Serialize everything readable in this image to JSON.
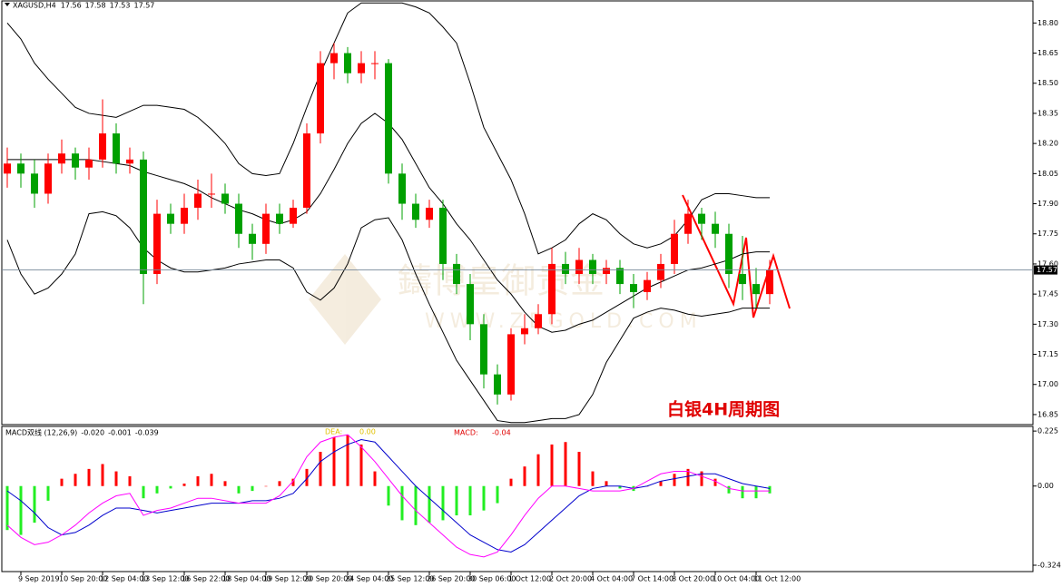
{
  "chart_data": [
    {
      "type": "candlestick",
      "title": "XAGUSD,H4",
      "info": [
        17.56,
        17.58,
        17.53,
        17.57
      ],
      "categories": [
        null,
        "9 Sep 2019",
        null,
        null,
        "10 Sep 20:00",
        null,
        null,
        "12 Sep 04:00",
        null,
        null,
        "13 Sep 12:00",
        null,
        null,
        "16 Sep 22:00",
        null,
        null,
        "18 Sep 04:00",
        null,
        null,
        "19 Sep 12:00",
        null,
        null,
        "20 Sep 20:00",
        null,
        null,
        "24 Sep 04:00",
        null,
        null,
        "25 Sep 12:00",
        null,
        null,
        "26 Sep 20:00",
        null,
        null,
        "30 Sep 06:00",
        null,
        null,
        "1 Oct 12:00",
        null,
        null,
        "2 Oct 20:00",
        null,
        null,
        "4 Oct 04:00",
        null,
        null,
        "7 Oct 14:00",
        null,
        null,
        "8 Oct 20:00",
        null,
        null,
        "10 Oct 04:00",
        null,
        null,
        "11 Oct 12:00",
        null
      ],
      "open": [
        18.05,
        18.1,
        18.05,
        17.95,
        18.1,
        18.15,
        18.08,
        18.12,
        18.25,
        18.1,
        18.12,
        17.55,
        17.85,
        17.8,
        17.88,
        17.95,
        17.95,
        17.9,
        17.75,
        17.7,
        17.85,
        17.8,
        17.88,
        18.25,
        18.6,
        18.65,
        18.55,
        18.6,
        18.6,
        18.05,
        17.9,
        17.82,
        17.88,
        17.6,
        17.5,
        17.3,
        17.05,
        16.95,
        17.25,
        17.28,
        17.35,
        17.6,
        17.55,
        17.62,
        17.55,
        17.58,
        17.5,
        17.46,
        17.52,
        17.6,
        17.75,
        17.85,
        17.8,
        17.75,
        17.55,
        17.5,
        17.45
      ],
      "high": [
        18.18,
        18.15,
        18.12,
        18.15,
        18.22,
        18.18,
        18.18,
        18.42,
        18.3,
        18.18,
        18.16,
        17.92,
        17.9,
        17.95,
        18.02,
        18.05,
        18.0,
        17.95,
        17.8,
        17.9,
        17.9,
        17.92,
        18.3,
        18.66,
        18.7,
        18.68,
        18.66,
        18.66,
        18.62,
        18.1,
        17.95,
        17.92,
        17.92,
        17.65,
        17.55,
        17.35,
        17.1,
        17.28,
        17.35,
        17.4,
        17.68,
        17.66,
        17.68,
        17.65,
        17.62,
        17.62,
        17.55,
        17.56,
        17.65,
        17.82,
        17.92,
        17.88,
        17.86,
        17.8,
        17.74,
        17.58,
        17.62
      ],
      "low": [
        17.98,
        17.98,
        17.88,
        17.9,
        18.05,
        18.02,
        18.02,
        18.08,
        18.05,
        18.05,
        17.4,
        17.5,
        17.75,
        17.75,
        17.82,
        17.88,
        17.85,
        17.68,
        17.62,
        17.65,
        17.75,
        17.78,
        17.85,
        18.2,
        18.52,
        18.5,
        18.5,
        18.52,
        18.0,
        17.82,
        17.78,
        17.78,
        17.52,
        17.45,
        17.22,
        16.98,
        16.9,
        16.92,
        17.2,
        17.25,
        17.3,
        17.5,
        17.5,
        17.5,
        17.5,
        17.45,
        17.38,
        17.42,
        17.48,
        17.55,
        17.7,
        17.72,
        17.68,
        17.48,
        17.42,
        17.38,
        17.4
      ],
      "close": [
        18.1,
        18.05,
        17.95,
        18.1,
        18.15,
        18.08,
        18.12,
        18.25,
        18.1,
        18.12,
        17.55,
        17.85,
        17.8,
        17.88,
        17.95,
        17.95,
        17.9,
        17.75,
        17.7,
        17.85,
        17.8,
        17.88,
        18.25,
        18.6,
        18.65,
        18.55,
        18.6,
        18.6,
        18.05,
        17.9,
        17.82,
        17.88,
        17.6,
        17.5,
        17.3,
        17.05,
        16.95,
        17.25,
        17.28,
        17.35,
        17.6,
        17.55,
        17.62,
        17.55,
        17.58,
        17.5,
        17.46,
        17.52,
        17.6,
        17.75,
        17.85,
        17.8,
        17.75,
        17.55,
        17.5,
        17.45,
        17.57
      ],
      "color_up": "#ff0000",
      "color_down": "#00a000",
      "bands": [
        {
          "color": "#000000",
          "values": [
            18.8,
            18.72,
            18.6,
            18.52,
            18.45,
            18.38,
            18.35,
            18.34,
            18.33,
            18.36,
            18.39,
            18.39,
            18.38,
            18.37,
            18.33,
            18.27,
            18.2,
            18.1,
            18.05,
            18.04,
            18.05,
            18.2,
            18.38,
            18.55,
            18.7,
            18.85,
            18.9,
            18.9,
            18.9,
            18.9,
            18.88,
            18.85,
            18.78,
            18.7,
            18.5,
            18.28,
            18.15,
            18.02,
            17.85,
            17.65,
            17.68,
            17.72,
            17.8,
            17.85,
            17.82,
            17.75,
            17.7,
            17.68,
            17.7,
            17.74,
            17.82,
            17.92,
            17.95,
            17.95,
            17.94,
            17.93,
            17.93
          ]
        },
        {
          "color": "#000000",
          "values": [
            18.12,
            18.12,
            18.12,
            18.12,
            18.12,
            18.12,
            18.12,
            18.11,
            18.1,
            18.09,
            18.06,
            18.04,
            18.02,
            18.0,
            17.97,
            17.93,
            17.9,
            17.87,
            17.85,
            17.82,
            17.8,
            17.82,
            17.86,
            17.95,
            18.07,
            18.2,
            18.3,
            18.35,
            18.3,
            18.22,
            18.1,
            17.98,
            17.9,
            17.8,
            17.72,
            17.62,
            17.52,
            17.45,
            17.36,
            17.29,
            17.26,
            17.27,
            17.3,
            17.32,
            17.36,
            17.4,
            17.44,
            17.48,
            17.51,
            17.54,
            17.57,
            17.58,
            17.6,
            17.62,
            17.65,
            17.66,
            17.66
          ]
        },
        {
          "color": "#000000",
          "values": [
            17.72,
            17.55,
            17.45,
            17.48,
            17.55,
            17.65,
            17.85,
            17.86,
            17.84,
            17.78,
            17.68,
            17.62,
            17.58,
            17.56,
            17.56,
            17.57,
            17.58,
            17.6,
            17.61,
            17.62,
            17.62,
            17.58,
            17.46,
            17.42,
            17.48,
            17.6,
            17.78,
            17.82,
            17.83,
            17.72,
            17.55,
            17.4,
            17.26,
            17.12,
            17.02,
            16.92,
            16.82,
            16.81,
            16.81,
            16.82,
            16.83,
            16.83,
            16.85,
            16.95,
            17.11,
            17.22,
            17.33,
            17.36,
            17.38,
            17.37,
            17.35,
            17.34,
            17.35,
            17.36,
            17.38,
            17.38,
            17.38
          ]
        }
      ],
      "last": 17.57,
      "ylim": [
        16.8,
        18.91
      ],
      "yticks": [
        {
          "value": 18.8,
          "label": "18.80"
        },
        18.65,
        {
          "value": 18.5,
          "label": "18.50"
        },
        18.35,
        {
          "value": 18.2,
          "label": "18.20"
        },
        18.05,
        {
          "value": 17.9,
          "label": "17.90"
        },
        17.75,
        {
          "value": 17.6,
          "label": "17.60"
        },
        17.45,
        {
          "value": 17.3,
          "label": "17.30"
        },
        17.15,
        {
          "value": 17.0,
          "label": "17.00"
        },
        16.85
      ],
      "annotation": "白银4H周期图",
      "watermark": [
        "鑄博皇御贵金",
        "WWW.ZBGOLD.COM"
      ]
    },
    {
      "type": "macd",
      "title": "MACD双线 (12,26,9)",
      "info": [
        {
          "value": -0.02,
          "label": "-0.020"
        },
        {
          "value": -0.001,
          "label": "-0.001"
        },
        {
          "value": -0.039,
          "label": "-0.039"
        }
      ],
      "dea_label": "DEA:",
      "dea_value": {
        "value": 0,
        "label": "0.00"
      },
      "macd_label": "MACD:",
      "macd_value": -0.04,
      "histogram": {
        "color_up": "#ff0000",
        "color_down": "#22ee22",
        "values": [
          -0.18,
          -0.2,
          -0.15,
          -0.06,
          0.03,
          0.05,
          0.07,
          0.09,
          0.06,
          0.04,
          -0.05,
          -0.03,
          -0.01,
          0.01,
          0.04,
          0.05,
          0.02,
          -0.03,
          -0.02,
          0.0,
          0.02,
          0.03,
          0.07,
          0.14,
          0.2,
          0.21,
          0.17,
          0.06,
          -0.08,
          -0.14,
          -0.16,
          -0.15,
          -0.14,
          -0.12,
          -0.12,
          -0.1,
          -0.07,
          0.03,
          0.08,
          0.13,
          0.17,
          0.18,
          0.14,
          0.06,
          0.02,
          -0.01,
          -0.02,
          0.0,
          0.02,
          0.05,
          0.07,
          0.06,
          0.03,
          -0.03,
          -0.05,
          -0.05,
          -0.03
        ]
      },
      "lines": [
        {
          "color": "#0000cc",
          "values": [
            -0.02,
            -0.06,
            -0.11,
            -0.17,
            -0.2,
            -0.19,
            -0.16,
            -0.12,
            -0.09,
            -0.09,
            -0.1,
            -0.11,
            -0.1,
            -0.09,
            -0.08,
            -0.07,
            -0.07,
            -0.07,
            -0.06,
            -0.06,
            -0.05,
            -0.03,
            0.03,
            0.1,
            0.14,
            0.17,
            0.19,
            0.18,
            0.12,
            0.06,
            0.0,
            -0.05,
            -0.1,
            -0.15,
            -0.2,
            -0.23,
            -0.26,
            -0.27,
            -0.24,
            -0.19,
            -0.14,
            -0.09,
            -0.04,
            -0.01,
            0.0,
            0.0,
            -0.01,
            0.0,
            0.02,
            0.03,
            0.04,
            0.05,
            0.05,
            0.03,
            0.01,
            0.0,
            -0.01
          ]
        },
        {
          "color": "#ff00ff",
          "values": [
            -0.16,
            -0.21,
            -0.24,
            -0.23,
            -0.2,
            -0.16,
            -0.11,
            -0.07,
            -0.04,
            -0.03,
            -0.12,
            -0.1,
            -0.09,
            -0.07,
            -0.05,
            -0.05,
            -0.06,
            -0.07,
            -0.07,
            -0.07,
            -0.04,
            0.02,
            0.12,
            0.18,
            0.2,
            0.21,
            0.16,
            0.1,
            0.03,
            -0.04,
            -0.1,
            -0.15,
            -0.2,
            -0.25,
            -0.28,
            -0.29,
            -0.27,
            -0.2,
            -0.12,
            -0.05,
            0.0,
            0.0,
            -0.01,
            -0.02,
            -0.02,
            -0.02,
            -0.01,
            0.02,
            0.05,
            0.06,
            0.06,
            0.04,
            0.02,
            -0.01,
            -0.02,
            -0.02,
            -0.02
          ]
        }
      ],
      "ylim": [
        -0.35,
        0.244
      ],
      "yticks": [
        0.225,
        {
          "value": 0,
          "label": "0.00"
        },
        -0.324
      ]
    }
  ]
}
